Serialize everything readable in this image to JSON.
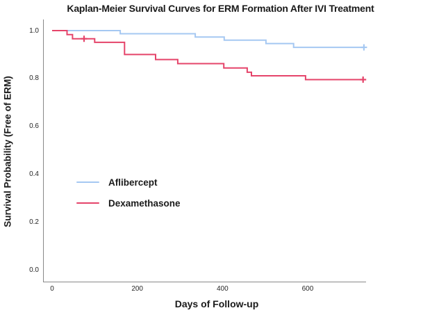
{
  "page": {
    "background_color": "#ffffff"
  },
  "chart_data": {
    "type": "line",
    "subtype": "kaplan-meier-step",
    "title": "Kaplan-Meier Survival Curves for ERM Formation After IVI Treatment",
    "xlabel": "Days of Follow-up",
    "ylabel": "Survival Probability (Free of ERM)",
    "grid": "off",
    "legend_position": "inside-middle-left",
    "x_axis": {
      "range": [
        -21,
        737
      ],
      "ticks": [
        {
          "value": 0,
          "label": "0"
        },
        {
          "value": 200,
          "label": "200"
        },
        {
          "value": 400,
          "label": "400"
        },
        {
          "value": 600,
          "label": "600"
        }
      ]
    },
    "y_axis": {
      "range": [
        0.0,
        1.05
      ],
      "ticks": [
        {
          "value": 1.0,
          "label": "1.0"
        },
        {
          "value": 0.8,
          "label": "0.8"
        },
        {
          "value": 0.6,
          "label": "0.6"
        },
        {
          "value": 0.4,
          "label": "0.4"
        },
        {
          "value": 0.2,
          "label": "0.2"
        },
        {
          "value": 0.0,
          "label": "0.0"
        }
      ]
    },
    "series": [
      {
        "name": "Aflibercept",
        "color": "#A5C8F2",
        "start": [
          0,
          1.0
        ],
        "steps": [
          [
            160,
            0.987
          ],
          [
            336,
            0.973
          ],
          [
            404,
            0.96
          ],
          [
            502,
            0.946
          ],
          [
            567,
            0.93
          ]
        ],
        "end_day": 732,
        "censor_marks": [
          [
            732,
            0.93
          ]
        ]
      },
      {
        "name": "Dexamethasone",
        "color": "#E5446A",
        "start": [
          0,
          1.0
        ],
        "steps": [
          [
            35,
            0.983
          ],
          [
            48,
            0.966
          ],
          [
            100,
            0.951
          ],
          [
            170,
            0.9
          ],
          [
            243,
            0.879
          ],
          [
            295,
            0.862
          ],
          [
            403,
            0.844
          ],
          [
            458,
            0.826
          ],
          [
            468,
            0.811
          ],
          [
            595,
            0.795
          ]
        ],
        "end_day": 730,
        "censor_marks": [
          [
            75,
            0.966
          ],
          [
            730,
            0.795
          ]
        ]
      }
    ]
  }
}
